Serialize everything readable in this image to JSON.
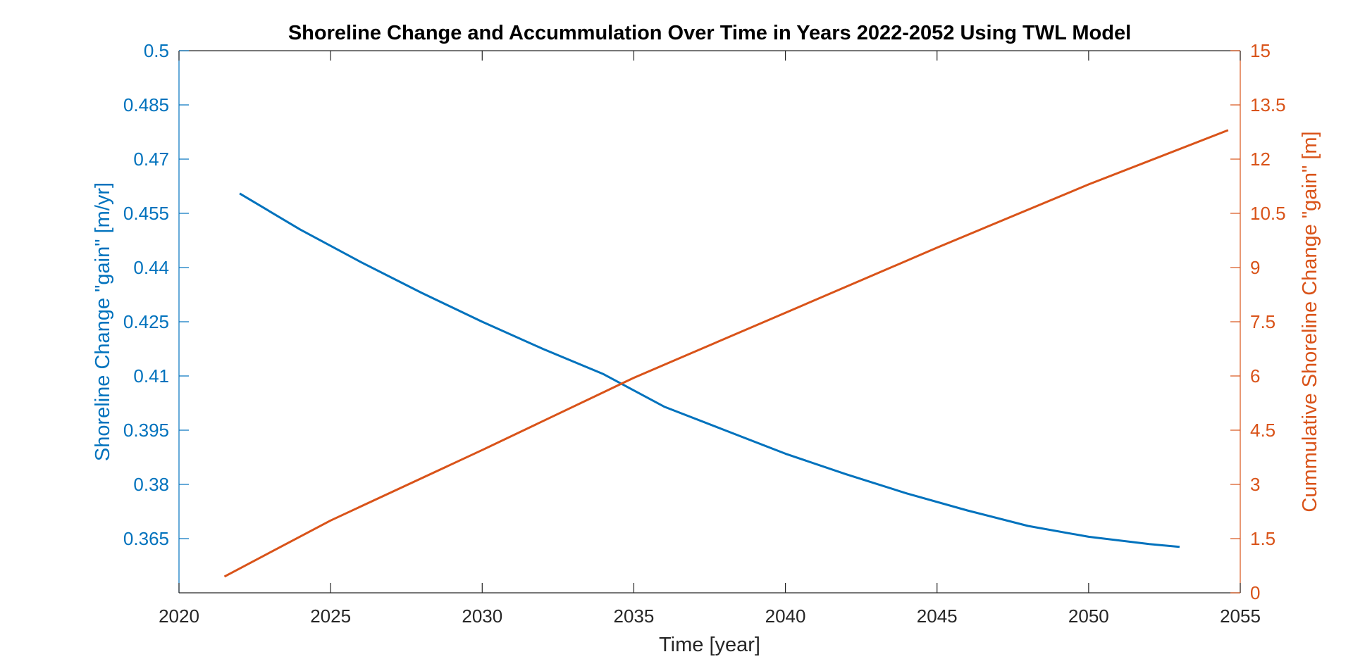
{
  "chart_data": {
    "type": "line",
    "title": "Shoreline Change and Accummulation Over Time in Years 2022-2052 Using TWL Model",
    "xlabel": "Time [year]",
    "ylabel_left": "Shoreline Change \"gain\" [m/yr]",
    "ylabel_right": "Cummulative Shoreline Change \"gain\" [m]",
    "xlim": [
      2020,
      2055
    ],
    "xticks": [
      "2020",
      "2025",
      "2030",
      "2035",
      "2040",
      "2045",
      "2050",
      "2055"
    ],
    "ylim_left": [
      0.35,
      0.5
    ],
    "yticks_left": [
      "0.365",
      "0.38",
      "0.395",
      "0.41",
      "0.425",
      "0.44",
      "0.455",
      "0.47",
      "0.485",
      "0.5"
    ],
    "ylim_right": [
      0,
      15
    ],
    "yticks_right": [
      "0",
      "1.5",
      "3",
      "4.5",
      "6",
      "7.5",
      "9",
      "10.5",
      "12",
      "13.5",
      "15"
    ],
    "grid": false,
    "colors": {
      "left": "#0072BD",
      "right": "#D95319",
      "axes": "#262626"
    },
    "series": [
      {
        "axis": "left",
        "x": [
          2022,
          2024,
          2026,
          2028,
          2030,
          2032,
          2034,
          2036,
          2038,
          2040,
          2042,
          2044,
          2046,
          2048,
          2050,
          2052,
          2053
        ],
        "values": [
          0.4605,
          0.4505,
          0.4415,
          0.433,
          0.425,
          0.4175,
          0.4105,
          0.4015,
          0.395,
          0.3885,
          0.3828,
          0.3775,
          0.3728,
          0.3685,
          0.3655,
          0.3635,
          0.3627
        ]
      },
      {
        "axis": "right",
        "x": [
          2021.5,
          2025,
          2030,
          2034,
          2035,
          2040,
          2045,
          2050,
          2054.6
        ],
        "values": [
          0.45,
          2.0,
          3.95,
          5.55,
          5.95,
          7.75,
          9.55,
          11.3,
          12.8
        ]
      }
    ]
  }
}
